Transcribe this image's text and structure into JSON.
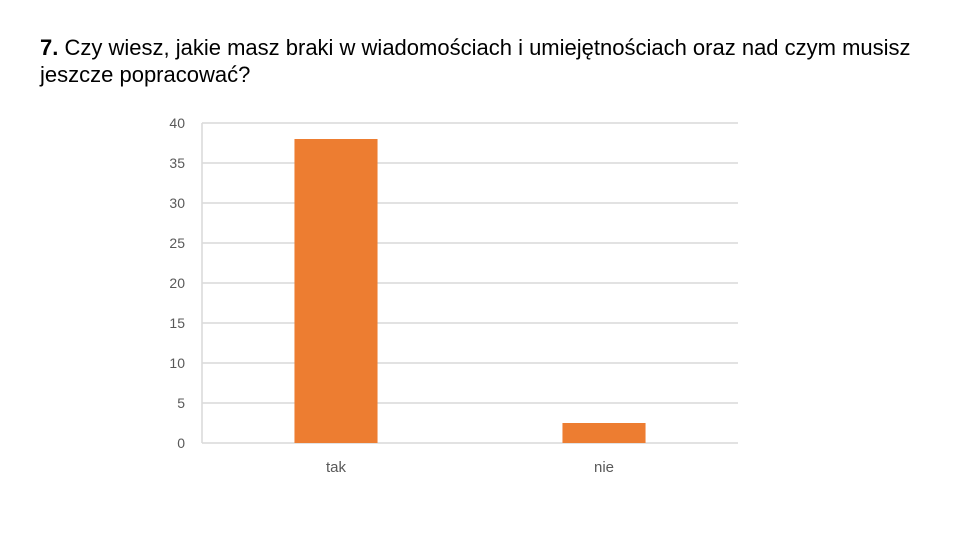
{
  "slide": {
    "question_number": "7.",
    "question_text": "Czy wiesz, jakie masz braki w wiadomościach i umiejętnościach oraz nad czym musisz jeszcze popracować?"
  },
  "chart_data": {
    "type": "bar",
    "categories": [
      "tak",
      "nie"
    ],
    "values": [
      38,
      2.5
    ],
    "title": "",
    "xlabel": "",
    "ylabel": "",
    "ylim": [
      0,
      40
    ],
    "yticks": [
      0,
      5,
      10,
      15,
      20,
      25,
      30,
      35,
      40
    ],
    "grid": true,
    "legend": "none",
    "colors": {
      "bar": "#ED7D31",
      "grid": "#D9D9D9",
      "axis": "#D9D9D9",
      "text": "#595959"
    }
  }
}
